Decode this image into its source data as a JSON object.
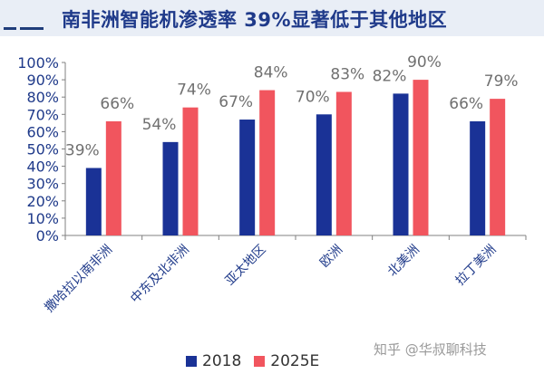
{
  "header": {
    "title": "南非洲智能机渗透率 39%显著低于其他地区"
  },
  "watermark": "知乎 @华叔聊科技",
  "chart_data": {
    "type": "bar",
    "title": "南非洲智能机渗透率 39%显著低于其他地区",
    "categories": [
      "撒哈拉以南非洲",
      "中东及北非洲",
      "亚太地区",
      "欧洲",
      "北美洲",
      "拉丁美洲"
    ],
    "series": [
      {
        "name": "2018",
        "color": "#1a3296",
        "values": [
          39,
          54,
          67,
          70,
          82,
          66
        ]
      },
      {
        "name": "2025E",
        "color": "#f1555e",
        "values": [
          66,
          74,
          84,
          83,
          90,
          79
        ]
      }
    ],
    "value_labels": [
      [
        "39%",
        "54%",
        "67%",
        "70%",
        "82%",
        "66%"
      ],
      [
        "66%",
        "74%",
        "84%",
        "83%",
        "90%",
        "79%"
      ]
    ],
    "yticks": [
      "0%",
      "10%",
      "20%",
      "30%",
      "40%",
      "50%",
      "60%",
      "70%",
      "80%",
      "90%",
      "100%"
    ],
    "ylim": [
      0,
      100
    ],
    "xlabel": "",
    "ylabel": "",
    "legend_position": "bottom",
    "grid": false
  }
}
